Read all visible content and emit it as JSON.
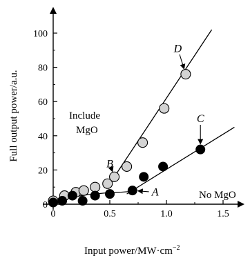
{
  "chart_data": {
    "type": "scatter",
    "title": "",
    "xlabel": "Input power/MW·cm",
    "xlabel_sup": "−2",
    "ylabel": "Full output power/a.u.",
    "xlim": [
      -0.05,
      1.7
    ],
    "ylim": [
      0,
      110
    ],
    "xticks": [
      0,
      0.5,
      1.0,
      1.5
    ],
    "xtick_labels": [
      "0",
      "0.5",
      "1.0",
      "1.5"
    ],
    "yticks": [
      0,
      20,
      40,
      60,
      80,
      100
    ],
    "ytick_labels": [
      "0",
      "20",
      "40",
      "60",
      "80",
      "100"
    ],
    "grid": false,
    "series": [
      {
        "name": "Include MgO",
        "marker": "open-circle",
        "fill": "#d3d3d3",
        "points": [
          {
            "x": 0.0,
            "y": 2
          },
          {
            "x": 0.1,
            "y": 5
          },
          {
            "x": 0.2,
            "y": 7
          },
          {
            "x": 0.27,
            "y": 8
          },
          {
            "x": 0.37,
            "y": 10
          },
          {
            "x": 0.48,
            "y": 12
          },
          {
            "x": 0.54,
            "y": 16
          },
          {
            "x": 0.65,
            "y": 22
          },
          {
            "x": 0.79,
            "y": 36
          },
          {
            "x": 0.98,
            "y": 56
          },
          {
            "x": 1.17,
            "y": 76
          }
        ],
        "fit_line": [
          {
            "x": 0.5,
            "y": 12
          },
          {
            "x": 1.4,
            "y": 102
          }
        ]
      },
      {
        "name": "No MgO",
        "marker": "filled-circle",
        "fill": "#000000",
        "points": [
          {
            "x": 0.0,
            "y": 1
          },
          {
            "x": 0.08,
            "y": 2
          },
          {
            "x": 0.17,
            "y": 5
          },
          {
            "x": 0.26,
            "y": 2
          },
          {
            "x": 0.37,
            "y": 5
          },
          {
            "x": 0.5,
            "y": 6
          },
          {
            "x": 0.7,
            "y": 8
          },
          {
            "x": 0.8,
            "y": 16
          },
          {
            "x": 0.97,
            "y": 22
          },
          {
            "x": 1.3,
            "y": 32
          }
        ],
        "fit_line": [
          {
            "x": 0.65,
            "y": 6
          },
          {
            "x": 1.6,
            "y": 45
          }
        ]
      }
    ],
    "low_curve": [
      {
        "x": 0.0,
        "y": 2.5
      },
      {
        "x": 0.15,
        "y": 4
      },
      {
        "x": 0.3,
        "y": 5.5
      },
      {
        "x": 0.45,
        "y": 6.5
      },
      {
        "x": 0.6,
        "y": 7
      },
      {
        "x": 0.7,
        "y": 7.5
      }
    ],
    "annotations": [
      {
        "text": "A",
        "italic": true,
        "point": {
          "x": 0.7,
          "y": 8
        },
        "text_at": {
          "x": 0.9,
          "y": 5
        }
      },
      {
        "text": "B",
        "italic": true,
        "point": {
          "x": 0.54,
          "y": 16
        },
        "text_at": {
          "x": 0.5,
          "y": 21.5
        }
      },
      {
        "text": "C",
        "italic": true,
        "point": {
          "x": 1.3,
          "y": 32
        },
        "text_at": {
          "x": 1.3,
          "y": 48
        }
      },
      {
        "text": "D",
        "italic": true,
        "point": {
          "x": 1.17,
          "y": 76
        },
        "text_at": {
          "x": 1.1,
          "y": 89
        }
      }
    ],
    "labels": {
      "include_line1": "Include",
      "include_line2": "MgO",
      "no_mgo": "No MgO"
    }
  }
}
